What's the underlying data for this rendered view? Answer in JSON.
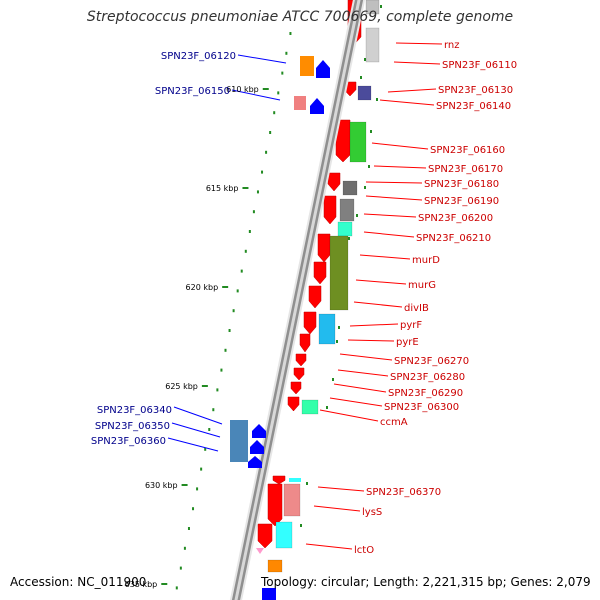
{
  "title": "Streptococcus pneumoniae ATCC 700669, complete genome",
  "accession": "Accession: NC_011900",
  "topology": "Topology: circular; Length: 2,221,315 bp; Genes: 2,079",
  "colors": {
    "backbone": "#9a9a9a",
    "forward_gene": "#ff0000",
    "reverse_gene": "#0000ff",
    "forward_label": "#cc0000",
    "reverse_label": "#00008b",
    "tick": "#228b22"
  },
  "scale_labels": [
    {
      "text": "610 kbp"
    },
    {
      "text": "615 kbp"
    },
    {
      "text": "620 kbp"
    },
    {
      "text": "625 kbp"
    },
    {
      "text": "630 kbp"
    },
    {
      "text": "635 kbp"
    }
  ],
  "right_labels": [
    {
      "text": "rnz"
    },
    {
      "text": "SPN23F_06110"
    },
    {
      "text": "SPN23F_06130"
    },
    {
      "text": "SPN23F_06140"
    },
    {
      "text": "SPN23F_06160"
    },
    {
      "text": "SPN23F_06170"
    },
    {
      "text": "SPN23F_06180"
    },
    {
      "text": "SPN23F_06190"
    },
    {
      "text": "SPN23F_06200"
    },
    {
      "text": "SPN23F_06210"
    },
    {
      "text": "murD"
    },
    {
      "text": "murG"
    },
    {
      "text": "divIB"
    },
    {
      "text": "pyrF"
    },
    {
      "text": "pyrE"
    },
    {
      "text": "SPN23F_06270"
    },
    {
      "text": "SPN23F_06280"
    },
    {
      "text": "SPN23F_06290"
    },
    {
      "text": "SPN23F_06300"
    },
    {
      "text": "ccmA"
    },
    {
      "text": "SPN23F_06370"
    },
    {
      "text": "lysS"
    },
    {
      "text": "lctO"
    }
  ],
  "left_labels": [
    {
      "text": "SPN23F_06120"
    },
    {
      "text": "SPN23F_06150"
    },
    {
      "text": "SPN23F_06340"
    },
    {
      "text": "SPN23F_06350"
    },
    {
      "text": "SPN23F_06360"
    }
  ]
}
